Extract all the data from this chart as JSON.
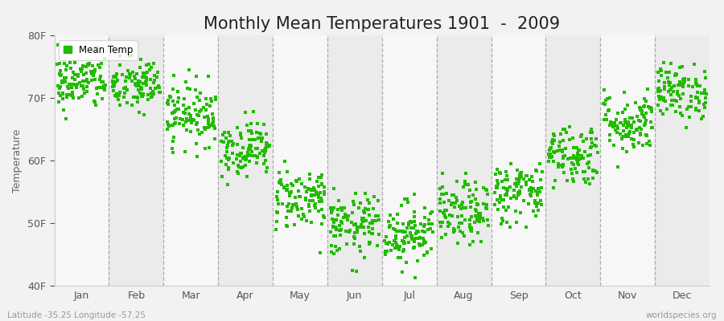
{
  "title": "Monthly Mean Temperatures 1901  -  2009",
  "ylabel": "Temperature",
  "ylim": [
    40,
    80
  ],
  "yticks": [
    40,
    50,
    60,
    70,
    80
  ],
  "ytick_labels": [
    "40F",
    "50F",
    "60F",
    "70F",
    "80F"
  ],
  "months": [
    "Jan",
    "Feb",
    "Mar",
    "Apr",
    "May",
    "Jun",
    "Jul",
    "Aug",
    "Sep",
    "Oct",
    "Nov",
    "Dec"
  ],
  "dot_color": "#22bb00",
  "dot_size": 5,
  "bg_color": "#f2f2f2",
  "band_light": "#f7f7f7",
  "band_dark": "#ebebeb",
  "dashed_line_color": "#999999",
  "title_fontsize": 15,
  "label_fontsize": 9,
  "tick_fontsize": 9,
  "bottom_left_text": "Latitude -35.25 Longitude -57.25",
  "bottom_right_text": "worldspecies.org",
  "legend_label": "Mean Temp",
  "n_years": 109,
  "monthly_means_F": [
    72.5,
    72.0,
    67.5,
    62.0,
    54.0,
    49.5,
    48.5,
    51.5,
    55.0,
    61.0,
    66.0,
    71.0
  ],
  "monthly_std_F": [
    2.2,
    2.2,
    2.5,
    2.2,
    2.5,
    2.5,
    2.5,
    2.5,
    2.5,
    2.5,
    2.5,
    2.2
  ]
}
